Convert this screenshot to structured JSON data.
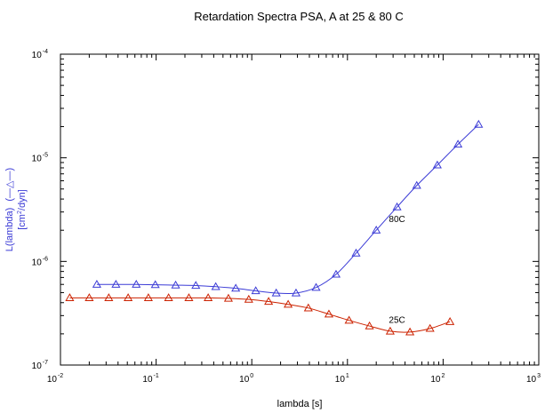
{
  "chart_data": {
    "type": "line",
    "title": "Retardation Spectra PSA, A at 25 & 80 C",
    "xlabel": "lambda [s]",
    "ylabel": {
      "line1": "L(lambda)",
      "line2_prefix": "[cm",
      "line2_sup": "2",
      "line2_suffix": "/dyn]"
    },
    "xscale": "log",
    "yscale": "log",
    "xlim": [
      0.01,
      1000
    ],
    "ylim": [
      1e-07,
      0.0001
    ],
    "x_ticks": [
      {
        "base": "10",
        "exp": "-2"
      },
      {
        "base": "10",
        "exp": "-1"
      },
      {
        "base": "10",
        "exp": "0"
      },
      {
        "base": "10",
        "exp": "1"
      },
      {
        "base": "10",
        "exp": "2"
      },
      {
        "base": "10",
        "exp": "3"
      }
    ],
    "y_ticks": [
      {
        "base": "10",
        "exp": "-7"
      },
      {
        "base": "10",
        "exp": "-6"
      },
      {
        "base": "10",
        "exp": "-5"
      },
      {
        "base": "10",
        "exp": "-4"
      }
    ],
    "grid": false,
    "marker": "triangle",
    "series": [
      {
        "name": "80C",
        "color": "#3b3bd6",
        "points": [
          [
            0.024,
            6e-07
          ],
          [
            0.038,
            6e-07
          ],
          [
            0.062,
            6e-07
          ],
          [
            0.098,
            5.95e-07
          ],
          [
            0.16,
            5.9e-07
          ],
          [
            0.26,
            5.85e-07
          ],
          [
            0.42,
            5.7e-07
          ],
          [
            0.68,
            5.5e-07
          ],
          [
            1.1,
            5.2e-07
          ],
          [
            1.8,
            4.95e-07
          ],
          [
            2.9,
            4.95e-07
          ],
          [
            4.7,
            5.6e-07
          ],
          [
            7.6,
            7.5e-07
          ],
          [
            12.3,
            1.2e-06
          ],
          [
            20,
            2e-06
          ],
          [
            33,
            3.35e-06
          ],
          [
            53,
            5.4e-06
          ],
          [
            87,
            8.5e-06
          ],
          [
            143,
            1.35e-05
          ],
          [
            235,
            2.1e-05
          ]
        ]
      },
      {
        "name": "25C",
        "color": "#cc2200",
        "points": [
          [
            0.0125,
            4.45e-07
          ],
          [
            0.02,
            4.45e-07
          ],
          [
            0.032,
            4.45e-07
          ],
          [
            0.051,
            4.45e-07
          ],
          [
            0.083,
            4.45e-07
          ],
          [
            0.135,
            4.45e-07
          ],
          [
            0.22,
            4.45e-07
          ],
          [
            0.35,
            4.45e-07
          ],
          [
            0.57,
            4.4e-07
          ],
          [
            0.93,
            4.3e-07
          ],
          [
            1.5,
            4.1e-07
          ],
          [
            2.4,
            3.85e-07
          ],
          [
            3.9,
            3.55e-07
          ],
          [
            6.4,
            3.1e-07
          ],
          [
            10.4,
            2.7e-07
          ],
          [
            17,
            2.38e-07
          ],
          [
            28,
            2.12e-07
          ],
          [
            45,
            2.08e-07
          ],
          [
            73,
            2.25e-07
          ],
          [
            118,
            2.62e-07
          ]
        ]
      }
    ]
  }
}
